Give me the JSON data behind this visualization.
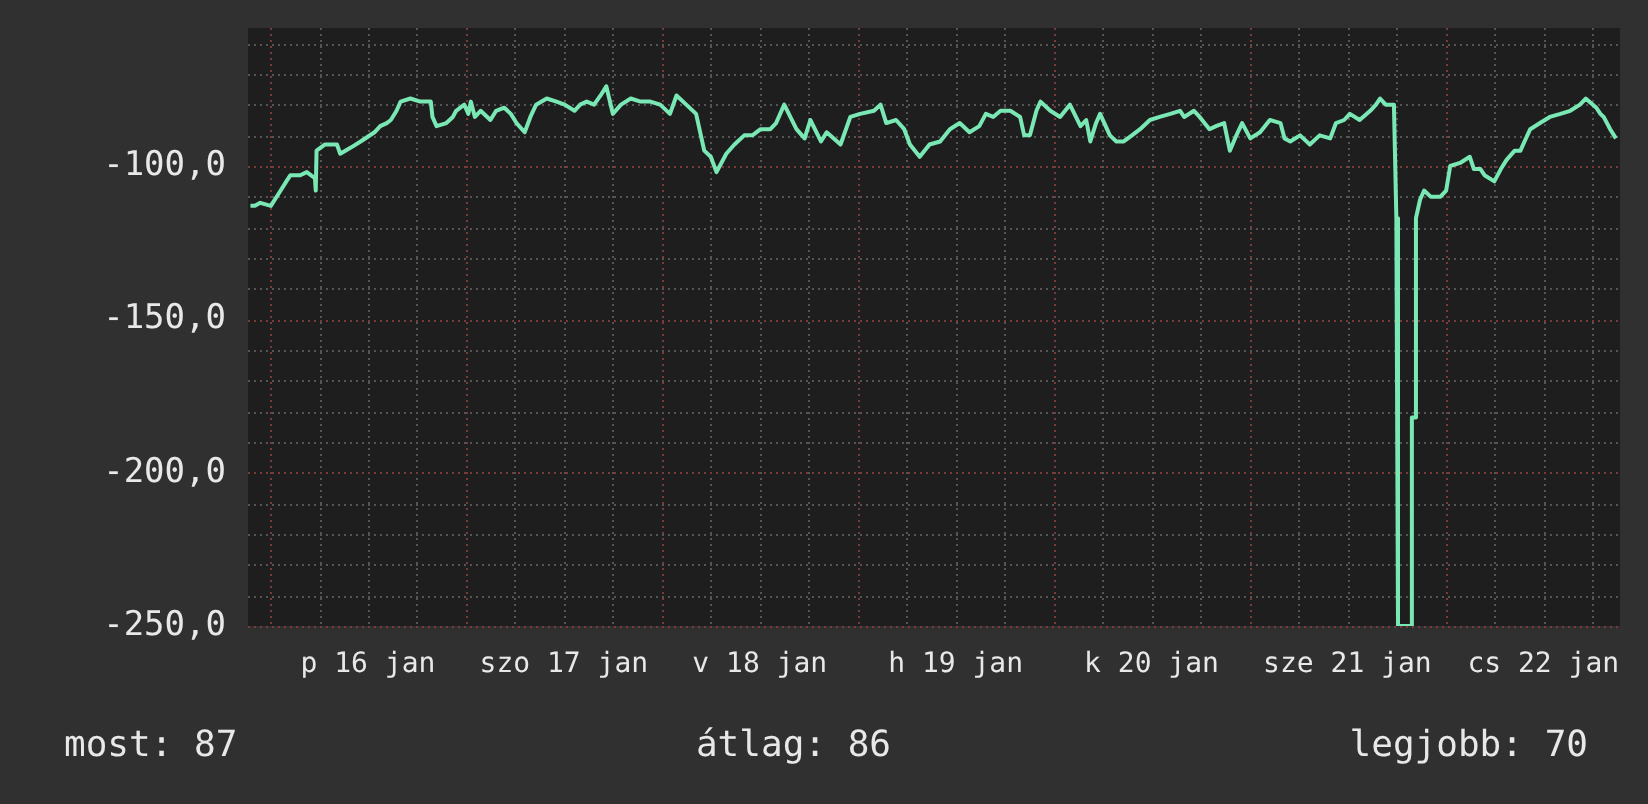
{
  "chart_data": {
    "type": "line",
    "xlim": [
      "--01-15T21:18",
      "--01-22T21:24"
    ],
    "ylim": [
      -250,
      -55
    ],
    "xticks": [
      {
        "value": "--01-16T12:00",
        "label": "p 16 jan"
      },
      {
        "value": "--01-17T12:00",
        "label": "szo 17 jan"
      },
      {
        "value": "--01-18T12:00",
        "label": "v 18 jan"
      },
      {
        "value": "--01-19T12:00",
        "label": "h 19 jan"
      },
      {
        "value": "--01-20T12:00",
        "label": "k 20 jan"
      },
      {
        "value": "--01-21T12:00",
        "label": "sze 21 jan"
      },
      {
        "value": "--01-22T12:00",
        "label": "cs 22 jan"
      }
    ],
    "yticks": [
      {
        "value": -250,
        "label": "-250,0"
      },
      {
        "value": -200,
        "label": "-200,0"
      },
      {
        "value": -150,
        "label": "-150,0"
      },
      {
        "value": -100,
        "label": "-100,0"
      }
    ],
    "grid": true,
    "legend": false,
    "marker": "none",
    "line_style": "solid",
    "annotations": [
      "most: 87",
      "átlag: 86",
      "legjobb: 70"
    ],
    "series": [
      {
        "color": "#7ae8b4",
        "x": [
          "--01-15T21:36",
          "--01-15T22:06",
          "--01-15T22:48",
          "--01-16T00:06",
          "--01-16T01:18",
          "--01-16T02:00",
          "--01-16T02:30",
          "--01-16T03:42",
          "--01-16T04:30",
          "--01-16T05:00",
          "--01-16T05:30",
          "--01-16T05:36",
          "--01-16T05:42",
          "--01-16T06:42",
          "--01-16T08:12",
          "--01-16T08:36",
          "--01-16T09:54",
          "--01-16T11:06",
          "--01-16T12:48",
          "--01-16T13:30",
          "--01-16T14:18",
          "--01-16T14:48",
          "--01-16T15:30",
          "--01-16T16:00",
          "--01-16T17:12",
          "--01-16T18:24",
          "--01-16T19:42",
          "--01-16T19:54",
          "--01-16T20:24",
          "--01-16T21:36",
          "--01-16T22:24",
          "--01-16T22:48",
          "--01-16T23:48",
          "--01-17T00:18",
          "--01-17T00:36",
          "--01-17T01:06",
          "--01-17T01:48",
          "--01-17T03:00",
          "--01-17T03:42",
          "--01-17T04:42",
          "--01-17T05:30",
          "--01-17T06:12",
          "--01-17T07:12",
          "--01-17T07:54",
          "--01-17T08:36",
          "--01-17T09:54",
          "--01-17T11:06",
          "--01-17T12:06",
          "--01-17T13:18",
          "--01-17T14:00",
          "--01-17T14:48",
          "--01-17T15:42",
          "--01-17T16:30",
          "--01-17T17:12",
          "--01-17T18:00",
          "--01-17T19:00",
          "--01-17T20:12",
          "--01-17T21:24",
          "--01-17T22:36",
          "--01-17T23:48",
          "--01-18T01:00",
          "--01-18T01:48",
          "--01-18T03:00",
          "--01-18T04:12",
          "--01-18T05:12",
          "--01-18T06:00",
          "--01-18T06:42",
          "--01-18T07:54",
          "--01-18T08:54",
          "--01-18T10:06",
          "--01-18T11:06",
          "--01-18T12:06",
          "--01-18T13:18",
          "--01-18T14:00",
          "--01-18T15:00",
          "--01-18T16:30",
          "--01-18T17:30",
          "--01-18T18:12",
          "--01-18T19:30",
          "--01-18T20:12",
          "--01-18T21:54",
          "--01-18T23:06",
          "--01-19T00:18",
          "--01-19T02:00",
          "--01-19T02:48",
          "--01-19T03:30",
          "--01-19T04:42",
          "--01-19T05:42",
          "--01-19T06:24",
          "--01-19T07:36",
          "--01-19T08:48",
          "--01-19T10:06",
          "--01-19T11:18",
          "--01-19T12:30",
          "--01-19T13:42",
          "--01-19T14:54",
          "--01-19T15:42",
          "--01-19T16:36",
          "--01-19T17:30",
          "--01-19T18:42",
          "--01-19T19:54",
          "--01-19T20:24",
          "--01-19T21:06",
          "--01-19T21:54",
          "--01-19T22:24",
          "--01-19T23:36",
          "--01-20T00:48",
          "--01-20T02:00",
          "--01-20T03:18",
          "--01-20T04:00",
          "--01-20T04:30",
          "--01-20T05:12",
          "--01-20T05:42",
          "--01-20T06:54",
          "--01-20T07:42",
          "--01-20T08:36",
          "--01-20T09:36",
          "--01-20T10:36",
          "--01-20T11:48",
          "--01-20T13:00",
          "--01-20T14:18",
          "--01-20T15:30",
          "--01-20T16:00",
          "--01-20T17:12",
          "--01-20T17:54",
          "--01-20T19:06",
          "--01-20T19:54",
          "--01-20T20:54",
          "--01-20T21:36",
          "--01-20T22:24",
          "--01-20T23:06",
          "--01-21T00:06",
          "--01-21T01:18",
          "--01-21T02:30",
          "--01-21T03:48",
          "--01-21T04:18",
          "--01-21T05:00",
          "--01-21T06:12",
          "--01-21T07:24",
          "--01-21T08:36",
          "--01-21T09:54",
          "--01-21T10:36",
          "--01-21T11:36",
          "--01-21T12:18",
          "--01-21T13:30",
          "--01-21T14:48",
          "--01-21T15:30",
          "--01-21T16:00",
          "--01-21T16:42",
          "--01-21T17:42",
          "--01-21T18:00",
          "--01-21T18:12",
          "--01-21T19:42",
          "--01-21T19:54",
          "--01-21T20:12",
          "--01-21T20:24",
          "--01-21T20:54",
          "--01-21T21:24",
          "--01-21T22:12",
          "--01-21T23:24",
          "--01-22T00:06",
          "--01-22T00:36",
          "--01-22T01:48",
          "--01-22T03:00",
          "--01-22T03:30",
          "--01-22T04:18",
          "--01-22T04:48",
          "--01-22T06:00",
          "--01-22T06:48",
          "--01-22T07:30",
          "--01-22T08:30",
          "--01-22T09:12",
          "--01-22T09:42",
          "--01-22T10:24",
          "--01-22T11:36",
          "--01-22T12:48",
          "--01-22T14:06",
          "--01-22T15:18",
          "--01-22T16:30",
          "--01-22T17:12",
          "--01-22T18:30",
          "--01-22T19:00",
          "--01-22T19:24",
          "--01-22T20:12",
          "--01-22T20:54"
        ],
        "values": [
          -113,
          -113,
          -112,
          -113,
          -108,
          -105,
          -103,
          -103,
          -102,
          -103,
          -104,
          -108,
          -95,
          -93,
          -93,
          -96,
          -94,
          -92,
          -89,
          -87,
          -86,
          -85,
          -82,
          -79,
          -78,
          -79,
          -79,
          -84,
          -87,
          -86,
          -84,
          -82,
          -80,
          -83,
          -79,
          -84,
          -82,
          -85,
          -82,
          -81,
          -83,
          -86,
          -89,
          -84,
          -80,
          -78,
          -79,
          -80,
          -82,
          -80,
          -79,
          -80,
          -77,
          -74,
          -83,
          -80,
          -78,
          -79,
          -79,
          -80,
          -83,
          -77,
          -80,
          -83,
          -95,
          -97,
          -102,
          -96,
          -93,
          -90,
          -90,
          -88,
          -88,
          -86,
          -80,
          -88,
          -91,
          -85,
          -92,
          -89,
          -93,
          -84,
          -83,
          -82,
          -80,
          -86,
          -85,
          -88,
          -93,
          -97,
          -93,
          -92,
          -88,
          -86,
          -89,
          -87,
          -83,
          -84,
          -82,
          -82,
          -84,
          -90,
          -90,
          -82,
          -79,
          -82,
          -84,
          -80,
          -87,
          -85,
          -92,
          -86,
          -83,
          -90,
          -92,
          -92,
          -90,
          -88,
          -85,
          -84,
          -83,
          -82,
          -84,
          -82,
          -84,
          -88,
          -87,
          -86,
          -95,
          -90,
          -86,
          -91,
          -89,
          -85,
          -86,
          -91,
          -92,
          -90,
          -93,
          -90,
          -91,
          -86,
          -85,
          -83,
          -85,
          -82,
          -80,
          -78,
          -80,
          -80,
          -117,
          -250,
          -250,
          -182,
          -182,
          -117,
          -111,
          -108,
          -110,
          -110,
          -108,
          -100,
          -99,
          -97,
          -101,
          -101,
          -103,
          -105,
          -101,
          -98,
          -95,
          -95,
          -92,
          -88,
          -86,
          -84,
          -83,
          -82,
          -80,
          -78,
          -81,
          -83,
          -84,
          -88,
          -91
        ]
      }
    ]
  }
}
